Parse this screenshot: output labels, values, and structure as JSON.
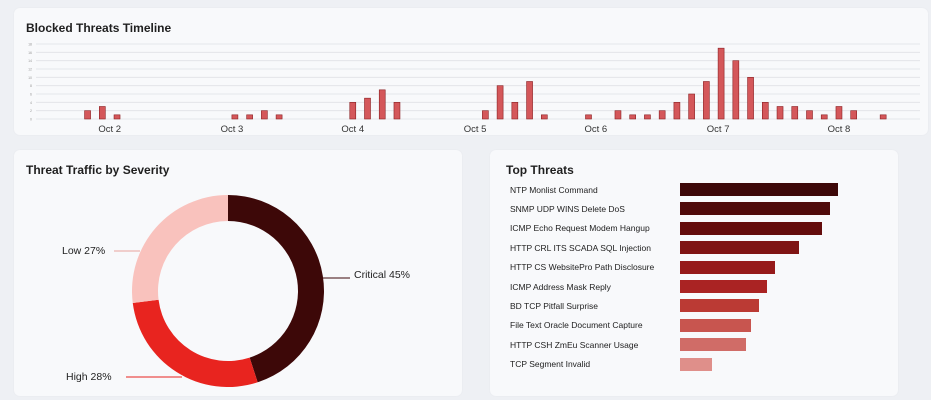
{
  "timeline": {
    "title": "Blocked Threats Timeline",
    "y_tick_labels": [
      "0",
      "2",
      "4",
      "6",
      "8",
      "10",
      "12",
      "14",
      "16",
      "18"
    ]
  },
  "severity": {
    "title": "Threat Traffic by Severity"
  },
  "top_threats": {
    "title": "Top Threats"
  },
  "chart_data": [
    {
      "id": "timeline",
      "type": "bar",
      "title": "Blocked Threats Timeline",
      "x_tick_labels": [
        "Oct 2",
        "Oct 3",
        "Oct 4",
        "Oct 5",
        "Oct 6",
        "Oct 7",
        "Oct 8"
      ],
      "ylim": [
        0,
        18
      ],
      "grid": true,
      "color": "#d4575a",
      "values": [
        2,
        3,
        1,
        1,
        1,
        2,
        1,
        4,
        5,
        7,
        4,
        2,
        8,
        4,
        9,
        1,
        1,
        2,
        1,
        1,
        2,
        4,
        6,
        9,
        17,
        14,
        10,
        4,
        3,
        3,
        2,
        1,
        3,
        2,
        1
      ],
      "slots": [
        3,
        4,
        5,
        13,
        14,
        15,
        16,
        21,
        22,
        23,
        24,
        30,
        31,
        32,
        33,
        34,
        37,
        39,
        40,
        41,
        42,
        43,
        44,
        45,
        46,
        47,
        48,
        49,
        50,
        51,
        52,
        53,
        54,
        55,
        57
      ],
      "tick_slots": [
        4.5,
        12.8,
        21,
        29.3,
        37.5,
        45.8,
        54
      ]
    },
    {
      "id": "severity",
      "type": "pie",
      "donut": true,
      "title": "Threat Traffic by Severity",
      "slices": [
        {
          "label": "Critical",
          "value": 45,
          "display": "Critical 45%",
          "color": "#3d0808"
        },
        {
          "label": "High",
          "value": 28,
          "display": "High 28%",
          "color": "#e8241f"
        },
        {
          "label": "Low",
          "value": 27,
          "display": "Low 27%",
          "color": "#f9c2bd"
        }
      ]
    },
    {
      "id": "top_threats",
      "type": "bar",
      "orientation": "horizontal",
      "title": "Top Threats",
      "categories": [
        "NTP Monlist Command",
        "SNMP UDP WINS Delete DoS",
        "ICMP Echo Request Modem Hangup",
        "HTTP CRL ITS SCADA SQL Injection",
        "HTTP CS WebsitePro Path Disclosure",
        "ICMP Address Mask Reply",
        "BD TCP Pitfall Surprise",
        "File Text Oracle Document Capture",
        "HTTP CSH ZmEu Scanner Usage",
        "TCP Segment Invalid"
      ],
      "values": [
        100,
        95,
        90,
        75,
        60,
        55,
        50,
        45,
        42,
        20
      ],
      "colors": [
        "#3d0808",
        "#4f0a0a",
        "#640c0c",
        "#7f1414",
        "#961a1a",
        "#aa2323",
        "#bb3a34",
        "#c8554f",
        "#d06c67",
        "#df8f8a"
      ]
    }
  ]
}
